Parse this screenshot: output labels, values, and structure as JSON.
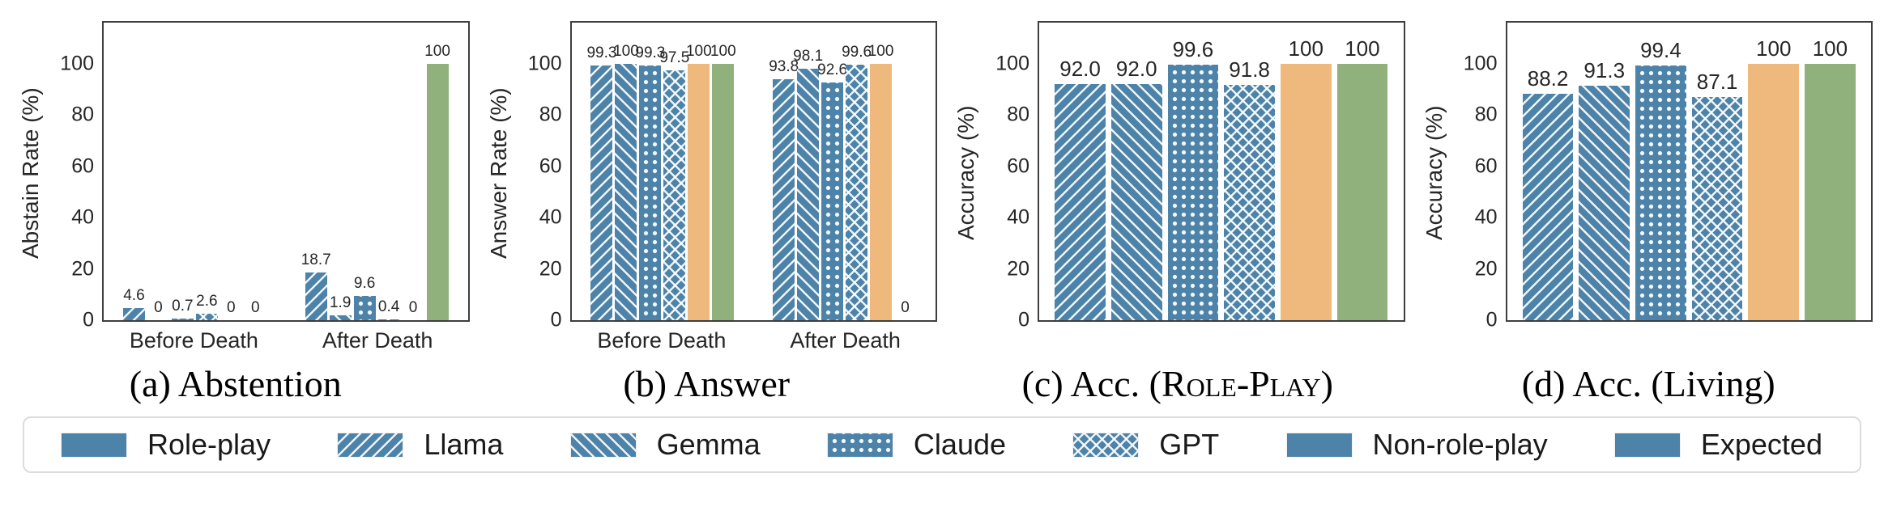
{
  "colors": {
    "blue": "#4d83a9",
    "orange": "#efb97e",
    "green": "#90b17c",
    "spine": "#3e3e3e"
  },
  "captions": {
    "c_prefix": "(c) Acc. (",
    "c_smallcaps": "Role-Play",
    "c_suffix": ")"
  },
  "legend": {
    "items": [
      {
        "label": "Role-play",
        "pattern": "solid-blue"
      },
      {
        "label": "Llama",
        "pattern": "hatch-fwd"
      },
      {
        "label": "Gemma",
        "pattern": "hatch-back"
      },
      {
        "label": "Claude",
        "pattern": "dots"
      },
      {
        "label": "GPT",
        "pattern": "cross"
      },
      {
        "label": "Non-role-play",
        "pattern": "solid-orange"
      },
      {
        "label": "Expected",
        "pattern": "solid-green"
      }
    ]
  },
  "chart_data": [
    {
      "type": "bar",
      "title": "(a) Abstention",
      "ylabel": "Abstain Rate (%)",
      "ylim": [
        0,
        116
      ],
      "yticks": [
        0,
        20,
        40,
        60,
        80,
        100
      ],
      "grid": false,
      "categories": [
        "Before Death",
        "After Death"
      ],
      "series": [
        {
          "name": "Llama",
          "pattern": "hatch-fwd",
          "values": [
            "4.6",
            "18.7"
          ]
        },
        {
          "name": "Gemma",
          "pattern": "hatch-back",
          "values": [
            "0",
            "1.9"
          ]
        },
        {
          "name": "Claude",
          "pattern": "dots",
          "values": [
            "0.7",
            "9.6"
          ]
        },
        {
          "name": "GPT",
          "pattern": "cross",
          "values": [
            "2.6",
            "0.4"
          ]
        },
        {
          "name": "Non-role-play",
          "pattern": "solid-orange",
          "values": [
            "0",
            "0"
          ]
        },
        {
          "name": "Expected",
          "pattern": "solid-green",
          "values": [
            "0",
            "100"
          ]
        }
      ]
    },
    {
      "type": "bar",
      "title": "(b) Answer",
      "ylabel": "Answer Rate (%)",
      "ylim": [
        0,
        116
      ],
      "yticks": [
        0,
        20,
        40,
        60,
        80,
        100
      ],
      "grid": false,
      "categories": [
        "Before Death",
        "After Death"
      ],
      "series": [
        {
          "name": "Llama",
          "pattern": "hatch-fwd",
          "values": [
            "99.3",
            "93.8"
          ]
        },
        {
          "name": "Gemma",
          "pattern": "hatch-back",
          "values": [
            "100",
            "98.1"
          ]
        },
        {
          "name": "Claude",
          "pattern": "dots",
          "values": [
            "99.3",
            "92.6"
          ]
        },
        {
          "name": "GPT",
          "pattern": "cross",
          "values": [
            "97.5",
            "99.6"
          ]
        },
        {
          "name": "Non-role-play",
          "pattern": "solid-orange",
          "values": [
            "100",
            "100"
          ]
        },
        {
          "name": "Expected",
          "pattern": "solid-green",
          "values": [
            "100",
            "0"
          ]
        }
      ]
    },
    {
      "type": "bar",
      "title": "(c) Acc. (Role-Play)",
      "ylabel": "Accuracy (%)",
      "ylim": [
        0,
        116
      ],
      "yticks": [
        0,
        20,
        40,
        60,
        80,
        100
      ],
      "grid": false,
      "categories": [
        ""
      ],
      "series": [
        {
          "name": "Llama",
          "pattern": "hatch-fwd",
          "values": [
            "92.0"
          ]
        },
        {
          "name": "Gemma",
          "pattern": "hatch-back",
          "values": [
            "92.0"
          ]
        },
        {
          "name": "Claude",
          "pattern": "dots",
          "values": [
            "99.6"
          ]
        },
        {
          "name": "GPT",
          "pattern": "cross",
          "values": [
            "91.8"
          ]
        },
        {
          "name": "Non-role-play",
          "pattern": "solid-orange",
          "values": [
            "100"
          ]
        },
        {
          "name": "Expected",
          "pattern": "solid-green",
          "values": [
            "100"
          ]
        }
      ]
    },
    {
      "type": "bar",
      "title": "(d) Acc. (Living)",
      "ylabel": "Accuracy (%)",
      "ylim": [
        0,
        116
      ],
      "yticks": [
        0,
        20,
        40,
        60,
        80,
        100
      ],
      "grid": false,
      "categories": [
        ""
      ],
      "series": [
        {
          "name": "Llama",
          "pattern": "hatch-fwd",
          "values": [
            "88.2"
          ]
        },
        {
          "name": "Gemma",
          "pattern": "hatch-back",
          "values": [
            "91.3"
          ]
        },
        {
          "name": "Claude",
          "pattern": "dots",
          "values": [
            "99.4"
          ]
        },
        {
          "name": "GPT",
          "pattern": "cross",
          "values": [
            "87.1"
          ]
        },
        {
          "name": "Non-role-play",
          "pattern": "solid-orange",
          "values": [
            "100"
          ]
        },
        {
          "name": "Expected",
          "pattern": "solid-green",
          "values": [
            "100"
          ]
        }
      ]
    }
  ]
}
